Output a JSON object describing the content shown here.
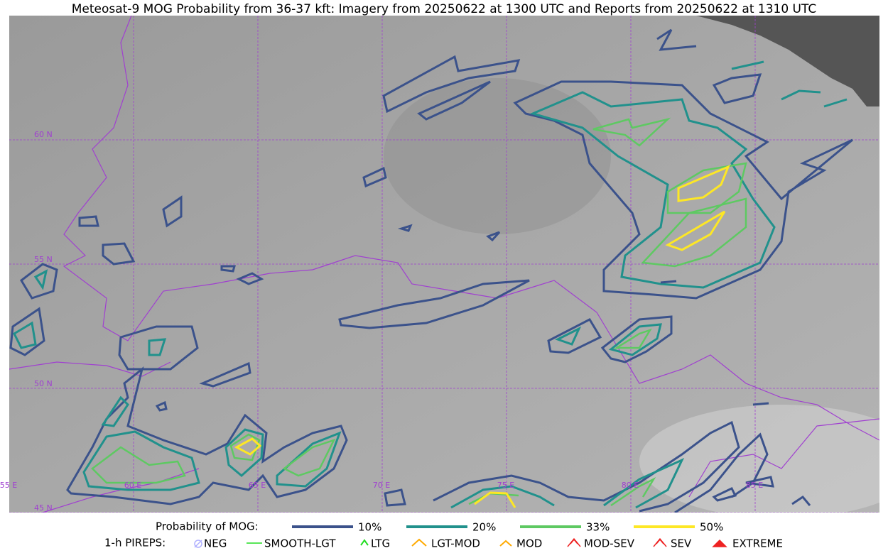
{
  "title": "Meteosat-9 MOG Probability from 36-37 kft: Imagery from 20250622 at 1300 UTC and Reports from 20250622 at 1310 UTC",
  "map": {
    "lat_labels": [
      "60 N",
      "55 N",
      "50 N",
      "45 N"
    ],
    "lon_labels": [
      "55 E",
      "60 E",
      "65 E",
      "70 E",
      "75 E",
      "80 E",
      "85 E"
    ]
  },
  "legend": {
    "probability_title": "Probability of MOG:",
    "probability_items": [
      {
        "name": "10%",
        "color": "#3b528b"
      },
      {
        "name": "20%",
        "color": "#21918c"
      },
      {
        "name": "33%",
        "color": "#5ec962"
      },
      {
        "name": "50%",
        "color": "#fde725"
      }
    ],
    "pireps_title": "1-h PIREPS:",
    "pireps_items": [
      "NEG",
      "SMOOTH-LGT",
      "LTG",
      "LGT-MOD",
      "MOD",
      "MOD-SEV",
      "SEV",
      "EXTREME"
    ]
  }
}
